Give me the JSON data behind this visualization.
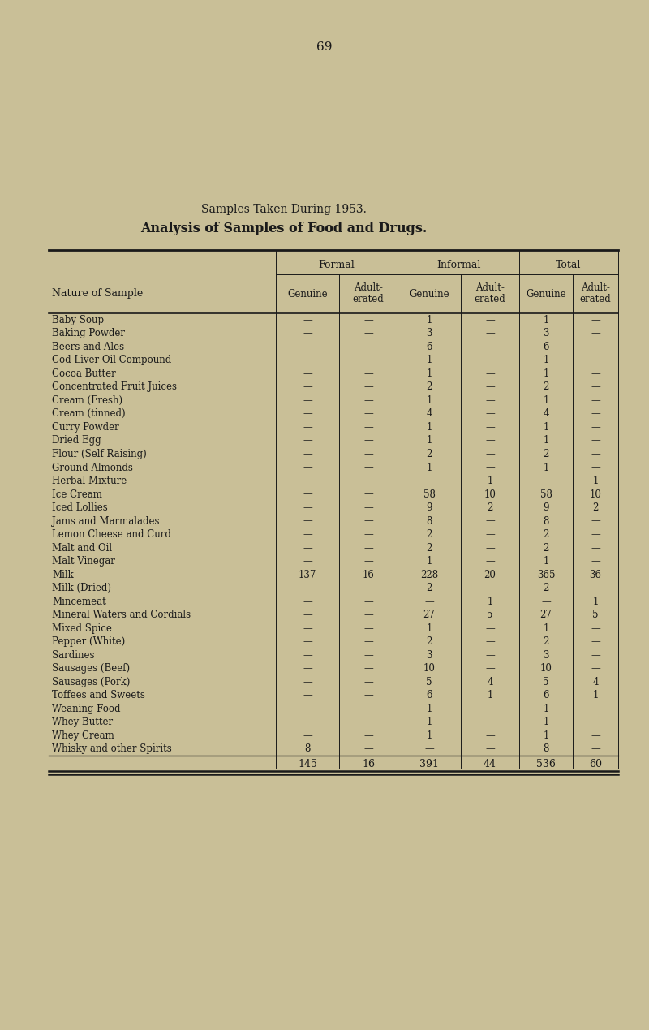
{
  "page_number": "69",
  "title1": "Samples Taken During 1953.",
  "title2": "Analysis of Samples of Food and Drugs.",
  "background_color": "#c9bf97",
  "text_color": "#1a1a1a",
  "rows": [
    [
      "Baby Soup",
      "—",
      "—",
      "1",
      "—",
      "1",
      "—"
    ],
    [
      "Baking Powder",
      "—",
      "—",
      "3",
      "—",
      "3",
      "—"
    ],
    [
      "Beers and Ales",
      "—",
      "—",
      "6",
      "—",
      "6",
      "—"
    ],
    [
      "Cod Liver Oil Compound",
      "—",
      "—",
      "1",
      "—",
      "1",
      "—"
    ],
    [
      "Cocoa Butter",
      "—",
      "—",
      "1",
      "—",
      "1",
      "—"
    ],
    [
      "Concentrated Fruit Juices",
      "—",
      "—",
      "2",
      "—",
      "2",
      "—"
    ],
    [
      "Cream (Fresh)",
      "—",
      "—",
      "1",
      "—",
      "1",
      "—"
    ],
    [
      "Cream (tinned)",
      "—",
      "—",
      "4",
      "—",
      "4",
      "—"
    ],
    [
      "Curry Powder",
      "—",
      "—",
      "1",
      "—",
      "1",
      "—"
    ],
    [
      "Dried Egg",
      "—",
      "—",
      "1",
      "—",
      "1",
      "—"
    ],
    [
      "Flour (Self Raising)",
      "—",
      "—",
      "2",
      "—",
      "2",
      "—"
    ],
    [
      "Ground Almonds",
      "—",
      "—",
      "1",
      "—",
      "1",
      "—"
    ],
    [
      "Herbal Mixture",
      "—",
      "—",
      "—",
      "1",
      "—",
      "1"
    ],
    [
      "Ice Cream",
      "—",
      "—",
      "58",
      "10",
      "58",
      "10"
    ],
    [
      "Iced Lollies",
      "—",
      "—",
      "9",
      "2",
      "9",
      "2"
    ],
    [
      "Jams and Marmalades",
      "—",
      "—",
      "8",
      "—",
      "8",
      "—"
    ],
    [
      "Lemon Cheese and Curd",
      "—",
      "—",
      "2",
      "—",
      "2",
      "—"
    ],
    [
      "Malt and Oil",
      "—",
      "—",
      "2",
      "—",
      "2",
      "—"
    ],
    [
      "Malt Vinegar",
      "—",
      "—",
      "1",
      "—",
      "1",
      "—"
    ],
    [
      "Milk",
      "137",
      "16",
      "228",
      "20",
      "365",
      "36"
    ],
    [
      "Milk (Dried)",
      "—",
      "—",
      "2",
      "—",
      "2",
      "—"
    ],
    [
      "Mincemeat",
      "—",
      "—",
      "—",
      "1",
      "—",
      "1"
    ],
    [
      "Mineral Waters and Cordials",
      "—",
      "—",
      "27",
      "5",
      "27",
      "5"
    ],
    [
      "Mixed Spice",
      "—",
      "—",
      "1",
      "—",
      "1",
      "—"
    ],
    [
      "Pepper (White)",
      "—",
      "—",
      "2",
      "—",
      "2",
      "—"
    ],
    [
      "Sardines",
      "—",
      "—",
      "3",
      "—",
      "3",
      "—"
    ],
    [
      "Sausages (Beef)",
      "—",
      "—",
      "10",
      "—",
      "10",
      "—"
    ],
    [
      "Sausages (Pork)",
      "—",
      "—",
      "5",
      "4",
      "5",
      "4"
    ],
    [
      "Toffees and Sweets",
      "—",
      "—",
      "6",
      "1",
      "6",
      "1"
    ],
    [
      "Weaning Food",
      "—",
      "—",
      "1",
      "—",
      "1",
      "—"
    ],
    [
      "Whey Butter",
      "—",
      "—",
      "1",
      "—",
      "1",
      "—"
    ],
    [
      "Whey Cream",
      "—",
      "—",
      "1",
      "—",
      "1",
      "—"
    ],
    [
      "Whisky and other Spirits",
      "8",
      "—",
      "—",
      "—",
      "8",
      "—"
    ]
  ],
  "totals": [
    "145",
    "16",
    "391",
    "44",
    "536",
    "60"
  ],
  "col_group_headers": [
    "Formal",
    "Informal",
    "Total"
  ],
  "col_sub_headers": [
    "Genuine",
    "Adult-\nerated",
    "Genuine",
    "Adult-\nerated",
    "Genuine",
    "Adult-\nerated"
  ],
  "row_header": "Nature of Sample"
}
